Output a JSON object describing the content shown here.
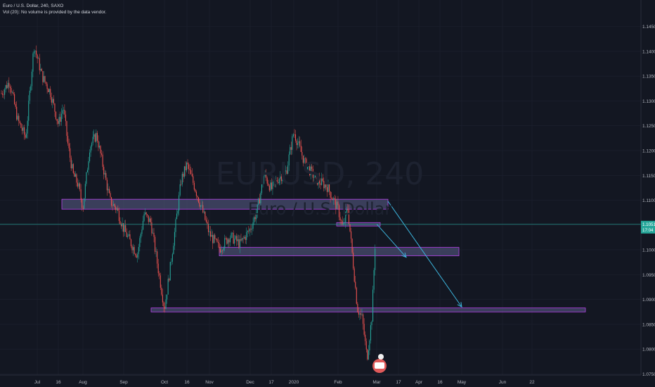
{
  "legend": {
    "title": "Euro / U.S. Dollar, 240, SAXO",
    "volume_note": "Vol (20): No volume is provided by the data vendor."
  },
  "watermark": {
    "symbol": "EURUSD, 240",
    "description": "Euro / U.S. Dollar"
  },
  "colors": {
    "background": "#131722",
    "grid": "#1e2230",
    "up_candle": "#26a69a",
    "down_candle": "#ef5350",
    "zone_fill": "#5b5f8a",
    "zone_border": "#b341e6",
    "arrow": "#3cb4dc",
    "price_line": "#26a69a"
  },
  "chart_data": {
    "type": "candlestick",
    "symbol": "EURUSD",
    "timeframe": "240",
    "source": "SAXO",
    "x_axis_labels": [
      "Jul",
      "16",
      "Aug",
      "Sep",
      "Oct",
      "16",
      "Nov",
      "Dec",
      "17",
      "2020",
      "Feb",
      "Mar",
      "17",
      "Apr",
      "16",
      "May",
      "Jun",
      "22"
    ],
    "y_axis_labels": [
      "1.14500",
      "1.14000",
      "1.13500",
      "1.13000",
      "1.12500",
      "1.12000",
      "1.11500",
      "1.11000",
      "1.10500",
      "1.10000",
      "1.09500",
      "1.09000",
      "1.08500",
      "1.08000",
      "1.07500"
    ],
    "ylim": [
      1.0745,
      1.1475
    ],
    "last_price": "1.10514",
    "countdown": "17:04",
    "price_path": [
      [
        "Jul",
        1.1315
      ],
      [
        "Jul",
        1.134
      ],
      [
        "Jul",
        1.1262
      ],
      [
        "Jul",
        1.1225
      ],
      [
        "Jul",
        1.1412
      ],
      [
        "Jul",
        1.135
      ],
      [
        "Jul",
        1.1318
      ],
      [
        "16",
        1.1253
      ],
      [
        "16",
        1.1288
      ],
      [
        "16",
        1.1208
      ],
      [
        "16",
        1.1152
      ],
      [
        "16",
        1.1132
      ],
      [
        "Aug",
        1.1085
      ],
      [
        "Aug",
        1.1208
      ],
      [
        "Aug",
        1.1232
      ],
      [
        "Aug",
        1.1165
      ],
      [
        "Aug",
        1.1098
      ],
      [
        "Aug",
        1.1082
      ],
      [
        "Sep",
        1.1042
      ],
      [
        "Sep",
        1.1015
      ],
      [
        "Sep",
        1.099
      ],
      [
        "Sep",
        1.1072
      ],
      [
        "Sep",
        1.1055
      ],
      [
        "Sep",
        1.0968
      ],
      [
        "Oct",
        1.0882
      ],
      [
        "Oct",
        1.0962
      ],
      [
        "Oct",
        1.1052
      ],
      [
        "Oct",
        1.1142
      ],
      [
        "16",
        1.1172
      ],
      [
        "16",
        1.1128
      ],
      [
        "16",
        1.1082
      ],
      [
        "Nov",
        1.1032
      ],
      [
        "Nov",
        1.1002
      ],
      [
        "Nov",
        1.1028
      ],
      [
        "Nov",
        1.1012
      ],
      [
        "Dec",
        1.1042
      ],
      [
        "Dec",
        1.108
      ],
      [
        "Dec",
        1.1152
      ],
      [
        "17",
        1.1122
      ],
      [
        "17",
        1.1145
      ],
      [
        "17",
        1.1158
      ],
      [
        "2020",
        1.1238
      ],
      [
        "2020",
        1.1175
      ],
      [
        "2020",
        1.1142
      ],
      [
        "2020",
        1.1128
      ],
      [
        "Feb",
        1.1082
      ],
      [
        "Feb",
        1.1043
      ],
      [
        "Feb",
        1.1085
      ],
      [
        "Feb",
        1.0985
      ],
      [
        "Feb",
        1.0882
      ],
      [
        "Feb",
        1.0862
      ],
      [
        "Feb",
        1.0782
      ],
      [
        "Feb",
        1.0865
      ],
      [
        "Mar",
        1.1052
      ]
    ]
  },
  "annotations": {
    "zones": [
      {
        "from": "16",
        "to": "17",
        "low": 1.1082,
        "high": 1.1102
      },
      {
        "from": "Nov",
        "to": "May",
        "low": 1.0988,
        "high": 1.1005
      },
      {
        "from": "Oct",
        "to": "Jun",
        "low": 1.0875,
        "high": 1.0883
      },
      {
        "from": "Feb",
        "to": "Mar",
        "low": 1.1048,
        "high": 1.1055
      }
    ],
    "arrows": [
      {
        "from": "17",
        "to": "May",
        "start": 1.1098,
        "end": 1.0885
      },
      {
        "from": "Mar",
        "to": "Apr",
        "start": 1.1052,
        "end": 1.0985
      }
    ]
  }
}
